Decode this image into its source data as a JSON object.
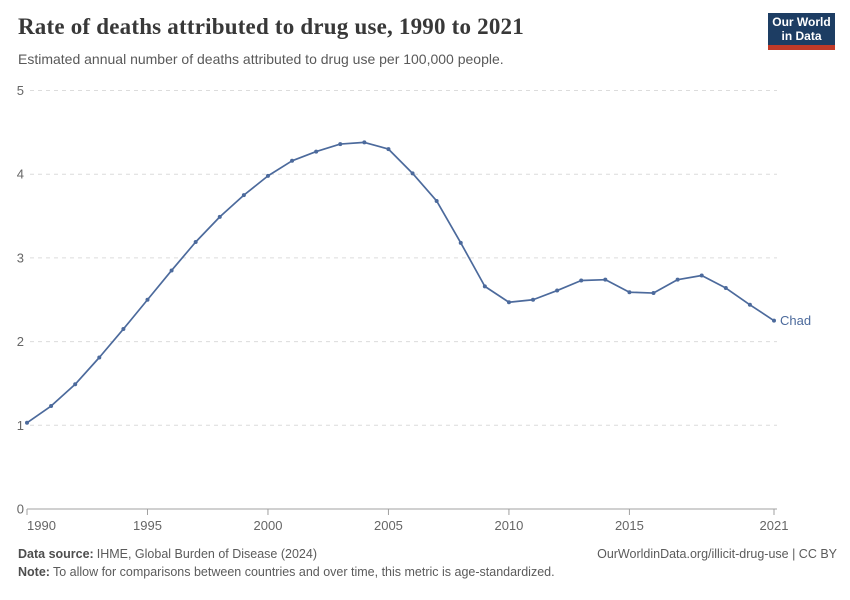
{
  "header": {
    "title": "Rate of deaths attributed to drug use, 1990 to 2021",
    "subtitle": "Estimated annual number of deaths attributed to drug use per 100,000 people.",
    "logo": {
      "line1": "Our World",
      "line2": "in Data"
    }
  },
  "chart_data": {
    "type": "line",
    "title": "Rate of deaths attributed to drug use, 1990 to 2021",
    "xlabel": "",
    "ylabel": "",
    "x": [
      1990,
      1991,
      1992,
      1993,
      1994,
      1995,
      1996,
      1997,
      1998,
      1999,
      2000,
      2001,
      2002,
      2003,
      2004,
      2005,
      2006,
      2007,
      2008,
      2009,
      2010,
      2011,
      2012,
      2013,
      2014,
      2015,
      2016,
      2017,
      2018,
      2019,
      2020,
      2021
    ],
    "series": [
      {
        "name": "Chad",
        "color": "#4c6a9c",
        "values": [
          1.03,
          1.23,
          1.49,
          1.81,
          2.15,
          2.5,
          2.85,
          3.19,
          3.49,
          3.75,
          3.98,
          4.16,
          4.27,
          4.36,
          4.38,
          4.3,
          4.01,
          3.68,
          3.18,
          2.66,
          2.47,
          2.5,
          2.61,
          2.73,
          2.74,
          2.59,
          2.58,
          2.74,
          2.79,
          2.64,
          2.44,
          2.25
        ]
      }
    ],
    "ylim": [
      0,
      5
    ],
    "yticks": [
      0,
      1,
      2,
      3,
      4,
      5
    ],
    "xticks": [
      1990,
      1995,
      2000,
      2005,
      2010,
      2015,
      2021
    ],
    "grid": "horizontal-dashed",
    "legend_position": "end-of-line-label",
    "end_label": "Chad"
  },
  "footer": {
    "datasource_label": "Data source:",
    "datasource_value": "IHME, Global Burden of Disease (2024)",
    "link": "OurWorldinData.org/illicit-drug-use | CC BY",
    "note_label": "Note:",
    "note_value": "To allow for comparisons between countries and over time, this metric is age-standardized."
  },
  "colors": {
    "line": "#4c6a9c",
    "logo_navy": "#1d3d63",
    "logo_red": "#c13a28",
    "gridline": "#dcdcdc",
    "axis_line": "#a0a0a0",
    "axis_text": "#666666",
    "title_text": "#383838",
    "subtitle_text": "#595959",
    "footer_text": "#5b5b5b"
  }
}
